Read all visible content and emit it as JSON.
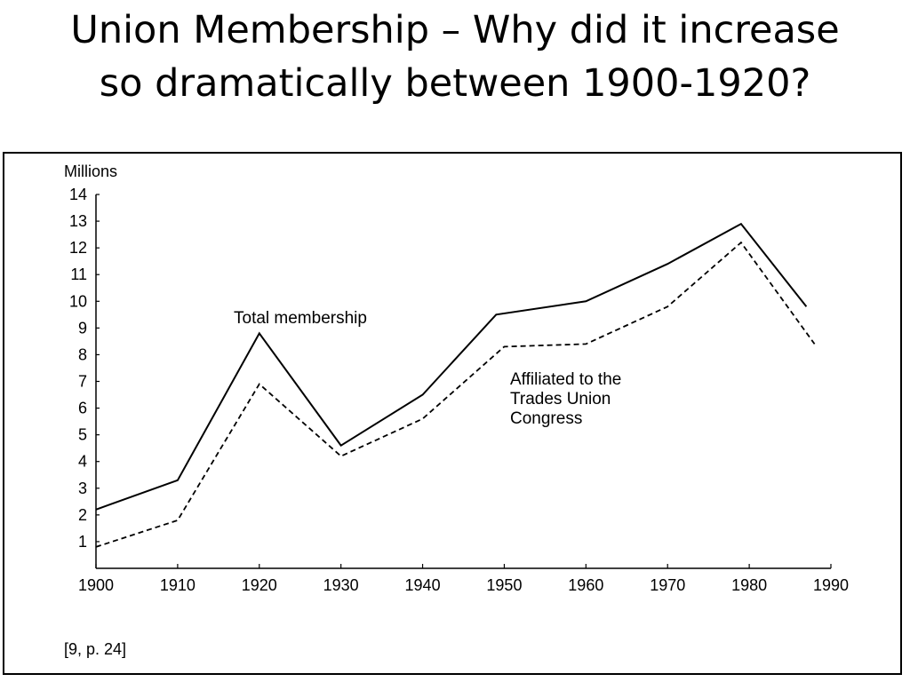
{
  "slide": {
    "title_line1": "Union Membership – Why did it increase",
    "title_line2": "so dramatically between 1900-1920?"
  },
  "chart_data": {
    "type": "line",
    "ylabel": "Millions",
    "xlabel": "",
    "xlim": [
      1900,
      1990
    ],
    "ylim": [
      0,
      14
    ],
    "x_ticks": [
      1900,
      1910,
      1920,
      1930,
      1940,
      1950,
      1960,
      1970,
      1980,
      1990
    ],
    "y_ticks": [
      1,
      2,
      3,
      4,
      5,
      6,
      7,
      8,
      9,
      10,
      11,
      12,
      13,
      14
    ],
    "grid": false,
    "series": [
      {
        "name": "Total membership",
        "style": "solid",
        "points": [
          {
            "x": 1900,
            "y": 2.2
          },
          {
            "x": 1910,
            "y": 3.3
          },
          {
            "x": 1920,
            "y": 8.8
          },
          {
            "x": 1930,
            "y": 4.6
          },
          {
            "x": 1940,
            "y": 6.5
          },
          {
            "x": 1949,
            "y": 9.5
          },
          {
            "x": 1960,
            "y": 10.0
          },
          {
            "x": 1970,
            "y": 11.4
          },
          {
            "x": 1979,
            "y": 12.9
          },
          {
            "x": 1987,
            "y": 9.8
          }
        ]
      },
      {
        "name": "Affiliated to the Trades Union Congress",
        "style": "dashed",
        "points": [
          {
            "x": 1900,
            "y": 0.8
          },
          {
            "x": 1910,
            "y": 1.8
          },
          {
            "x": 1920,
            "y": 6.9
          },
          {
            "x": 1930,
            "y": 4.2
          },
          {
            "x": 1940,
            "y": 5.6
          },
          {
            "x": 1950,
            "y": 8.3
          },
          {
            "x": 1960,
            "y": 8.4
          },
          {
            "x": 1970,
            "y": 9.8
          },
          {
            "x": 1979,
            "y": 12.2
          },
          {
            "x": 1988,
            "y": 8.4
          }
        ]
      }
    ],
    "annotations": [
      {
        "lines": [
          "Total membership"
        ],
        "series": 0
      },
      {
        "lines": [
          "Affiliated to the",
          "Trades Union",
          "Congress"
        ],
        "series": 1
      }
    ],
    "source_note": "[9, p. 24]"
  }
}
